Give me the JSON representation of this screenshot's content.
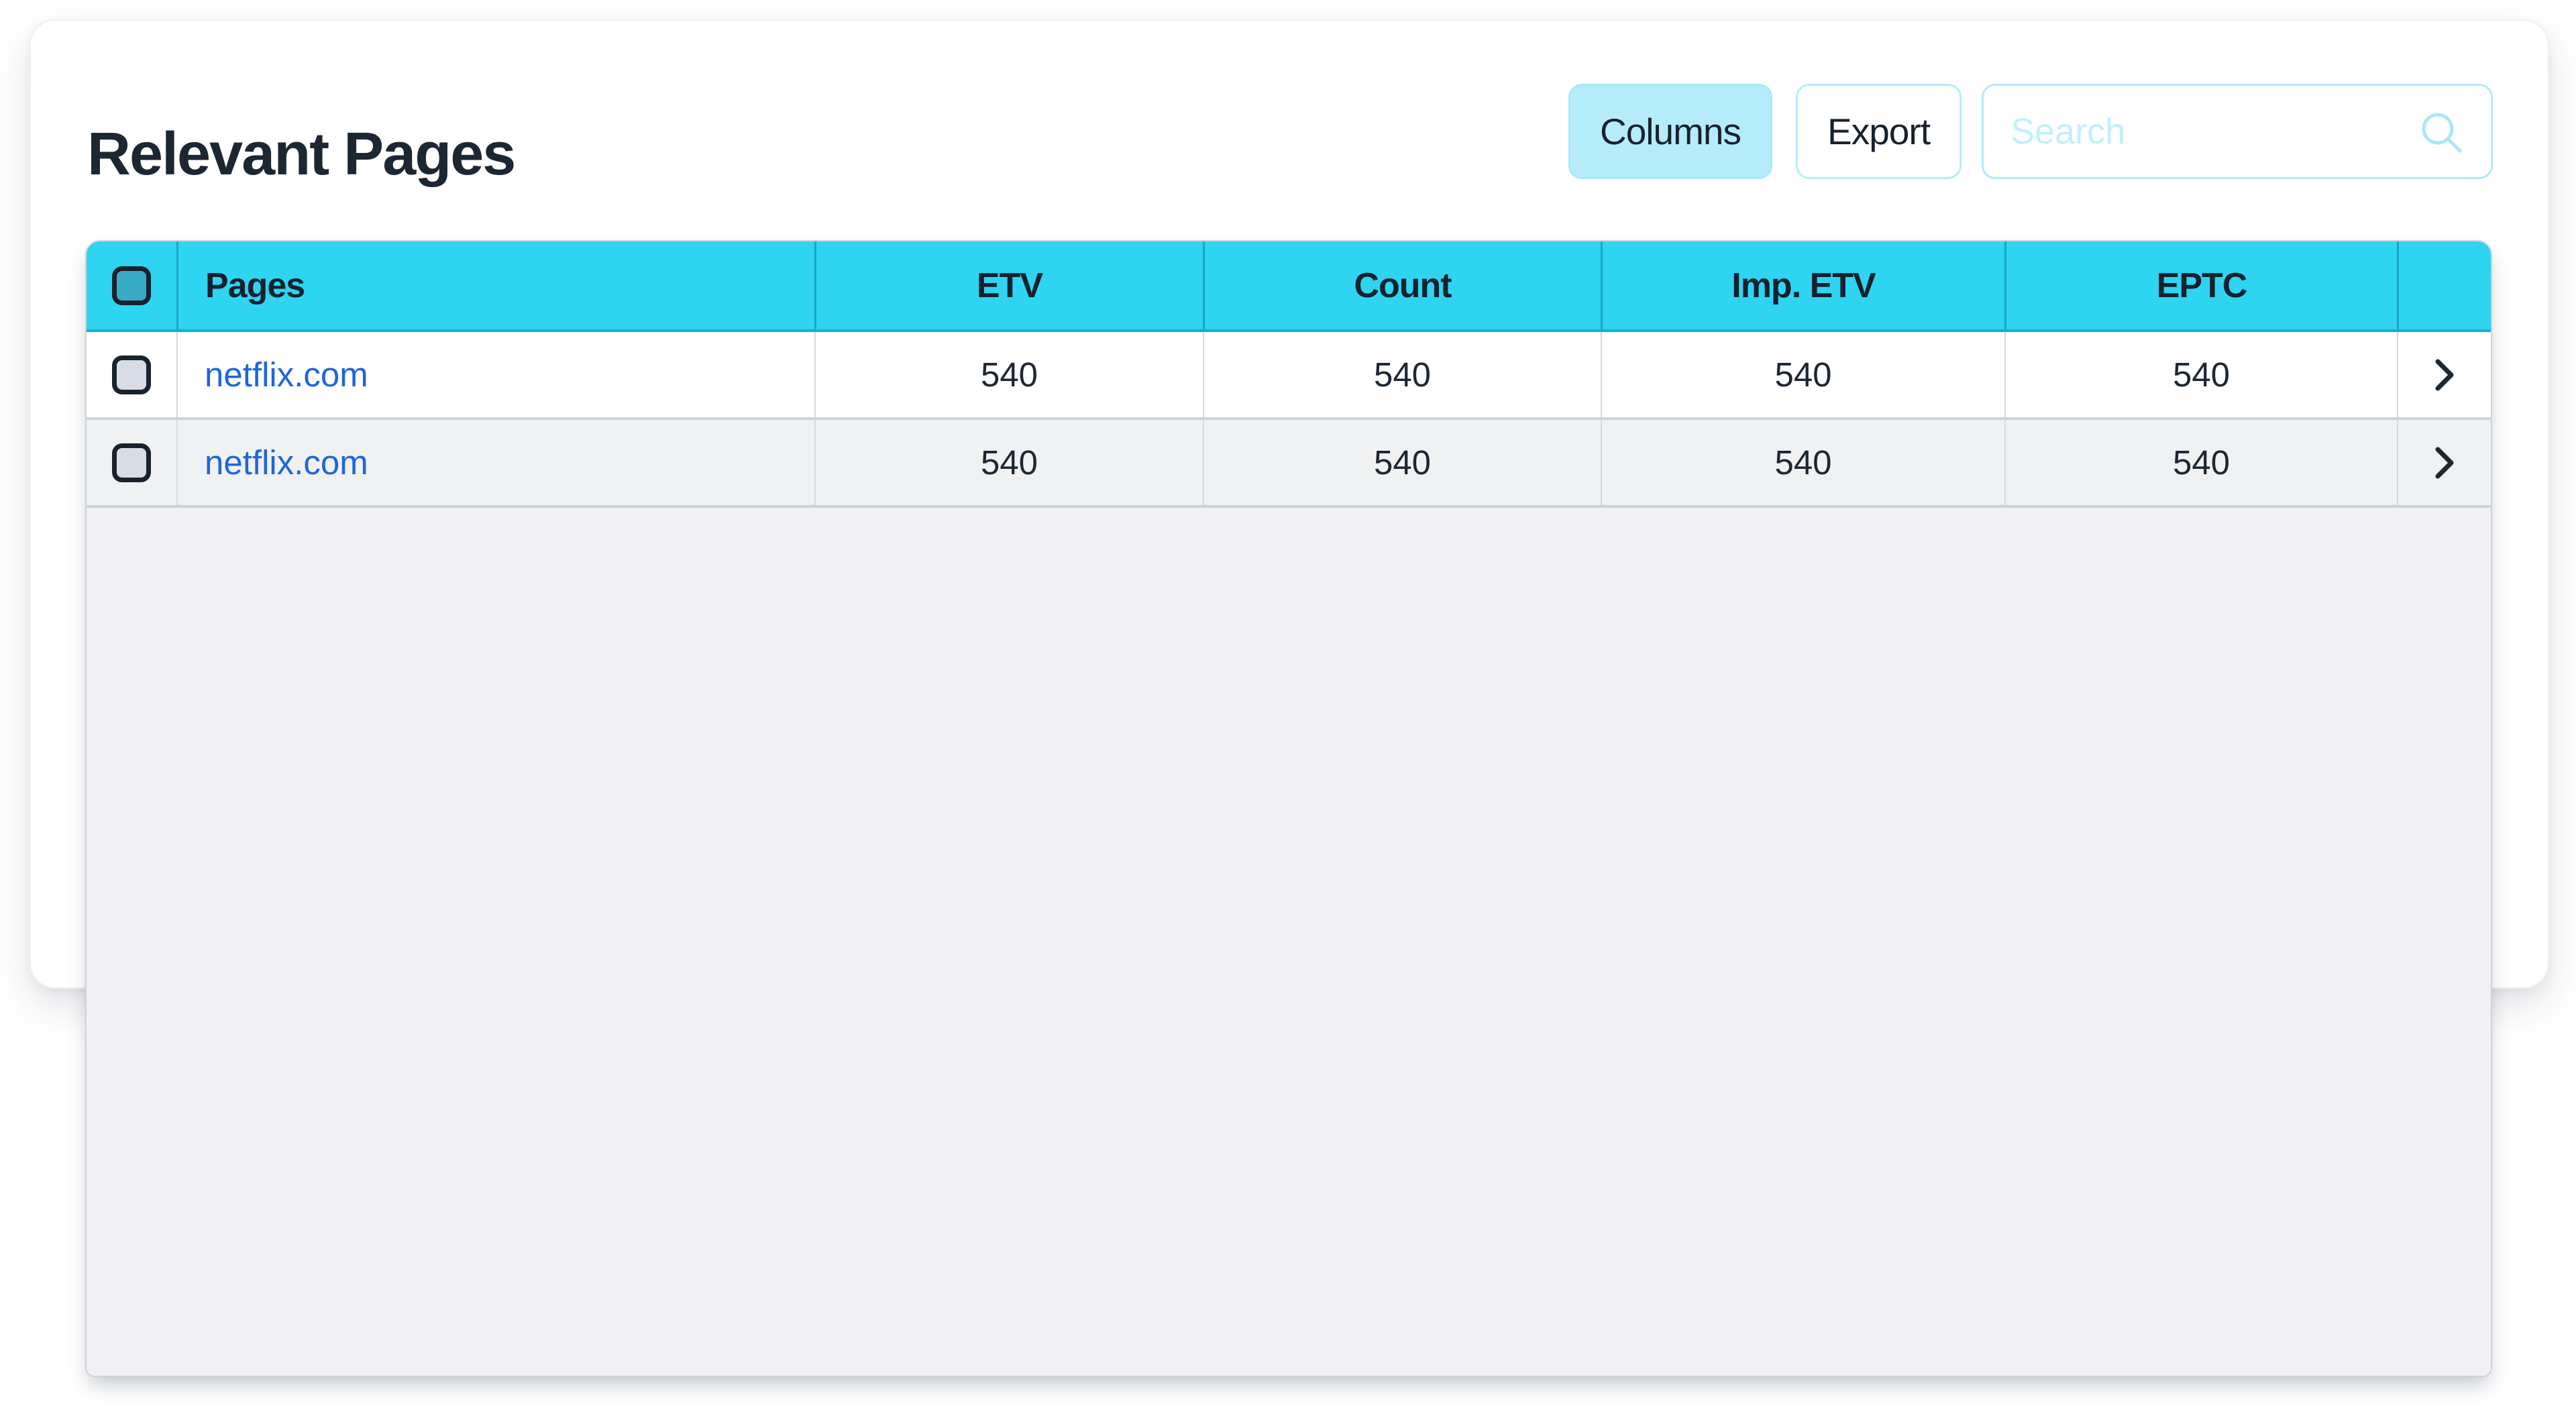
{
  "page": {
    "title": "Relevant Pages"
  },
  "toolbar": {
    "columns_button": "Columns",
    "export_button": "Export",
    "search_placeholder": "Search",
    "search_value": ""
  },
  "colors": {
    "header_bg": "#2ed4f0",
    "header_divider": "#1ba6c2",
    "accent_light": "#b5ecf9",
    "accent_border": "#b0eaf7",
    "link_blue": "#1d66dc",
    "dark_text": "#1c2733",
    "panel_bg": "#f1f1f3",
    "row_alt_bg": "#f0f1f2",
    "row_divider": "#ccd3da",
    "header_checkbox_fill": "#3aabc6",
    "row_checkbox_fill": "#d8dce4"
  },
  "icons": {
    "search": "magnifier-icon",
    "row_action": "chevron-right-icon"
  },
  "table": {
    "header_checkbox_checked": false,
    "columns": [
      {
        "key": "select",
        "label": "",
        "type": "checkbox",
        "align": "center"
      },
      {
        "key": "page",
        "label": "Pages",
        "type": "link",
        "align": "left"
      },
      {
        "key": "etv",
        "label": "ETV",
        "type": "text",
        "align": "center"
      },
      {
        "key": "count",
        "label": "Count",
        "type": "text",
        "align": "center"
      },
      {
        "key": "imp_etv",
        "label": "Imp. ETV",
        "type": "text",
        "align": "center"
      },
      {
        "key": "eptc",
        "label": "EPTC",
        "type": "text",
        "align": "center"
      },
      {
        "key": "action",
        "label": "",
        "type": "chevron",
        "align": "center"
      }
    ],
    "rows": [
      {
        "selected": false,
        "page": "netflix.com",
        "etv": "540",
        "count": "540",
        "imp_etv": "540",
        "eptc": "540"
      },
      {
        "selected": false,
        "page": "netflix.com",
        "etv": "540",
        "count": "540",
        "imp_etv": "540",
        "eptc": "540"
      }
    ]
  }
}
